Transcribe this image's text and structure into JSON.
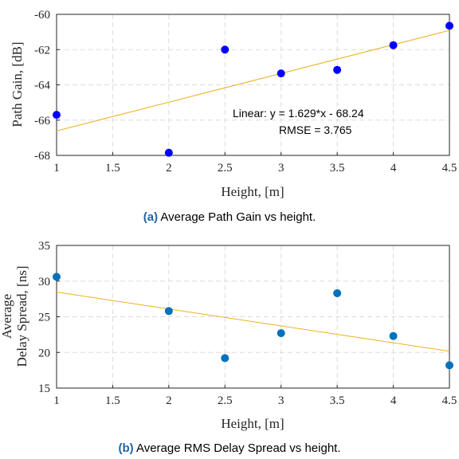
{
  "chart_data": [
    {
      "type": "scatter",
      "title": "",
      "xlabel": "Height, [m]",
      "ylabel": "Path Gain, [dB]",
      "xlim": [
        1,
        4.5
      ],
      "ylim": [
        -68,
        -60
      ],
      "xticks": [
        1,
        1.5,
        2,
        2.5,
        3,
        3.5,
        4,
        4.5
      ],
      "yticks": [
        -68,
        -66,
        -64,
        -62,
        -60
      ],
      "points": [
        {
          "x": 1.0,
          "y": -65.7
        },
        {
          "x": 2.0,
          "y": -67.85
        },
        {
          "x": 2.5,
          "y": -62.0
        },
        {
          "x": 3.0,
          "y": -63.35
        },
        {
          "x": 3.5,
          "y": -63.15
        },
        {
          "x": 4.0,
          "y": -61.75
        },
        {
          "x": 4.5,
          "y": -60.65
        }
      ],
      "fit": {
        "slope": 1.629,
        "intercept": -68.24
      },
      "annotation_line1": "Linear:  y = 1.629*x - 68.24",
      "annotation_line2": "RMSE = 3.765",
      "caption_tag": "(a)",
      "caption_text": " Average Path Gain vs height.",
      "colors": {
        "marker": "#0000ff",
        "fit": "#edb120"
      },
      "grid": true
    },
    {
      "type": "scatter",
      "title": "",
      "xlabel": "Height, [m]",
      "ylabel_line1": "Average",
      "ylabel_line2": "Delay Spread, [ns]",
      "xlim": [
        1,
        4.5
      ],
      "ylim": [
        15,
        35
      ],
      "xticks": [
        1,
        1.5,
        2,
        2.5,
        3,
        3.5,
        4,
        4.5
      ],
      "yticks": [
        15,
        20,
        25,
        30,
        35
      ],
      "points": [
        {
          "x": 1.0,
          "y": 30.6
        },
        {
          "x": 2.0,
          "y": 25.8
        },
        {
          "x": 2.5,
          "y": 19.2
        },
        {
          "x": 3.0,
          "y": 22.7
        },
        {
          "x": 3.5,
          "y": 28.3
        },
        {
          "x": 4.0,
          "y": 22.3
        },
        {
          "x": 4.5,
          "y": 18.2
        }
      ],
      "fit": {
        "slope": -2.37,
        "intercept": 30.83
      },
      "caption_tag": "(b)",
      "caption_text": " Average RMS Delay Spread vs height.",
      "colors": {
        "marker": "#0072bd",
        "fit": "#edb120"
      },
      "grid": true
    }
  ]
}
